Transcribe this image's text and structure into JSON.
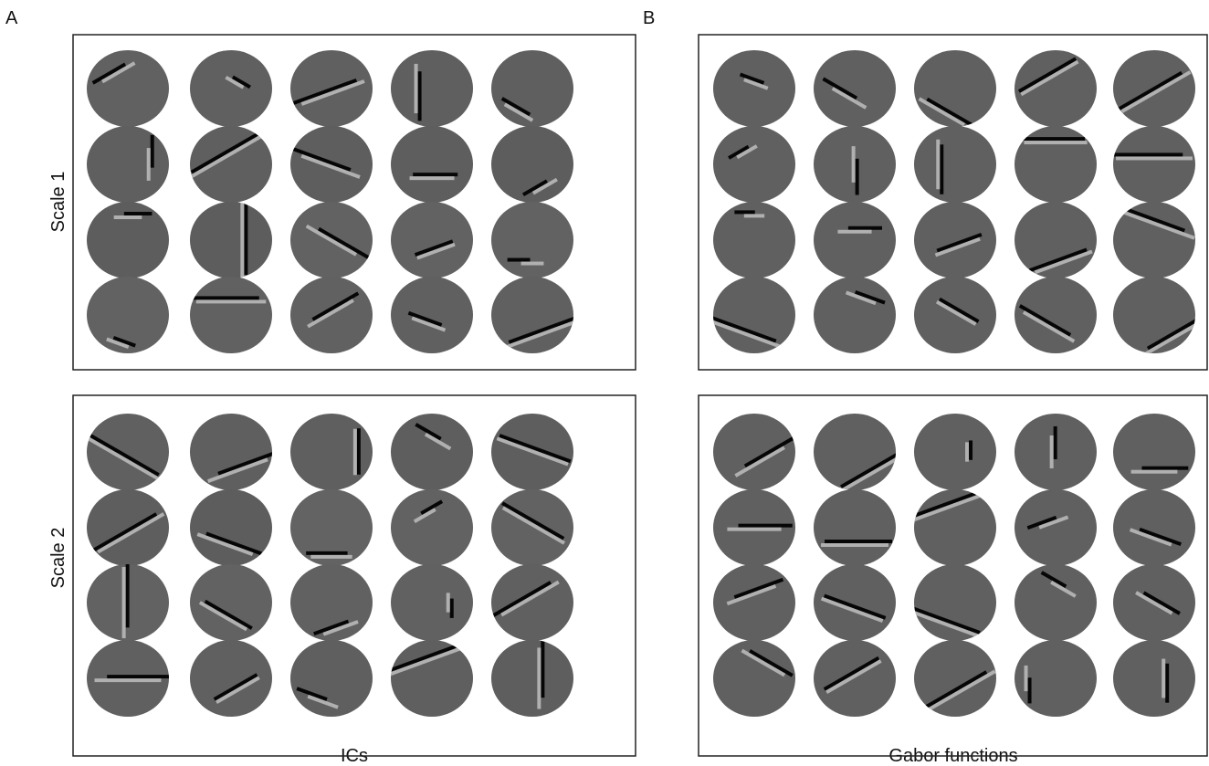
{
  "panels": [
    {
      "label": "A",
      "caption": "ICs"
    },
    {
      "label": "B",
      "caption": "Gabor functions"
    }
  ],
  "row_labels": [
    "Scale 1",
    "Scale 2"
  ]
}
